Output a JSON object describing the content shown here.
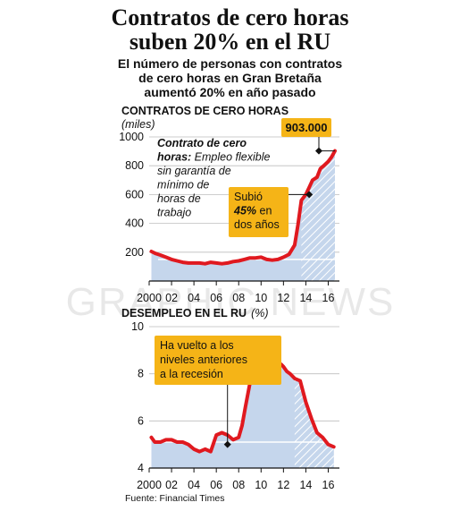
{
  "header": {
    "title_line1": "Contratos de cero horas",
    "title_line2": "suben 20% en el RU",
    "subtitle_line1": "El número de personas con contratos",
    "subtitle_line2": "de cero horas en Gran Bretaña",
    "subtitle_line3": "aumentó 20% en año pasado"
  },
  "colors": {
    "line": "#e0191f",
    "area": "#c5d6ec",
    "callout": "#f5b417",
    "badge": "#f5b417"
  },
  "source": "Fuente: Financial Times",
  "watermark": "GRAPHIC NEWS",
  "chart_data": [
    {
      "type": "area",
      "title": "Contratos de Cero Horas",
      "unit": "(miles)",
      "ylim": [
        0,
        1000
      ],
      "yticks": [
        200,
        400,
        600,
        800,
        1000
      ],
      "ytick_labels": [
        "200",
        "400",
        "600",
        "800",
        "1000"
      ],
      "xlim": [
        2000,
        2017
      ],
      "xticks": [
        2000,
        2002,
        2004,
        2006,
        2008,
        2010,
        2012,
        2014,
        2016
      ],
      "xtick_labels": [
        "2000",
        "02",
        "04",
        "06",
        "08",
        "10",
        "12",
        "14",
        "16"
      ],
      "grid": true,
      "series": [
        {
          "x": [
            2000.2,
            2000.6,
            2001.0,
            2001.5,
            2002.0,
            2002.5,
            2003.0,
            2003.5,
            2004.0,
            2004.5,
            2005.0,
            2005.5,
            2006.0,
            2006.5,
            2007.0,
            2007.5,
            2008.0,
            2008.5,
            2009.0,
            2009.5,
            2010.0,
            2010.5,
            2011.0,
            2011.5,
            2012.0,
            2012.5,
            2013.0,
            2013.3,
            2013.6,
            2014.0,
            2014.3,
            2014.6,
            2015.0,
            2015.3,
            2015.6,
            2016.0,
            2016.3,
            2016.6
          ],
          "values": [
            205,
            190,
            180,
            165,
            150,
            140,
            130,
            125,
            125,
            125,
            120,
            130,
            125,
            120,
            125,
            135,
            140,
            150,
            160,
            160,
            165,
            150,
            145,
            150,
            165,
            185,
            250,
            390,
            560,
            600,
            650,
            700,
            720,
            780,
            800,
            830,
            860,
            903
          ]
        }
      ],
      "callouts": [
        {
          "lines": [
            {
              "parts": [
                {
                  "text": "Contrato de cero",
                  "style": "bold"
                }
              ]
            },
            {
              "parts": [
                {
                  "text": "horas:",
                  "style": "bold"
                },
                {
                  "text": " Empleo flexible",
                  "style": "italic"
                }
              ]
            },
            {
              "parts": [
                {
                  "text": "sin garantía de",
                  "style": "italic"
                }
              ]
            },
            {
              "parts": [
                {
                  "text": "mínimo de",
                  "style": "italic"
                }
              ]
            },
            {
              "parts": [
                {
                  "text": "horas de",
                  "style": "italic"
                }
              ]
            },
            {
              "parts": [
                {
                  "text": "trabajo",
                  "style": "italic"
                }
              ]
            }
          ]
        },
        {
          "lines": [
            {
              "parts": [
                {
                  "text": "Subió",
                  "style": "normal"
                }
              ]
            },
            {
              "parts": [
                {
                  "text": "45%",
                  "style": "bold"
                },
                {
                  "text": " en",
                  "style": "normal"
                }
              ]
            },
            {
              "parts": [
                {
                  "text": "dos años",
                  "style": "normal"
                }
              ]
            }
          ],
          "pointer_x": 2014.3,
          "pointer_y": 600
        }
      ],
      "highlight_value": "903.000",
      "highlight_x": 2016.6,
      "highlight_y": 903
    },
    {
      "type": "area",
      "title": "Desempleo en el RU",
      "unit": "(%)",
      "ylim": [
        4,
        10
      ],
      "yticks": [
        4,
        6,
        8,
        10
      ],
      "ytick_labels": [
        "4",
        "6",
        "8",
        "10"
      ],
      "xlim": [
        2000,
        2017
      ],
      "xticks": [
        2000,
        2002,
        2004,
        2006,
        2008,
        2010,
        2012,
        2014,
        2016
      ],
      "xtick_labels": [
        "2000",
        "02",
        "04",
        "06",
        "08",
        "10",
        "12",
        "14",
        "16"
      ],
      "grid": true,
      "series": [
        {
          "x": [
            2000.2,
            2000.5,
            2001.0,
            2001.5,
            2002.0,
            2002.5,
            2003.0,
            2003.5,
            2004.0,
            2004.5,
            2005.0,
            2005.5,
            2006.0,
            2006.5,
            2007.0,
            2007.5,
            2008.0,
            2008.3,
            2008.6,
            2009.0,
            2009.3,
            2009.6,
            2010.0,
            2010.5,
            2011.0,
            2011.5,
            2011.8,
            2012.0,
            2012.3,
            2012.6,
            2013.0,
            2013.5,
            2014.0,
            2014.5,
            2015.0,
            2015.5,
            2016.0,
            2016.5
          ],
          "values": [
            5.3,
            5.1,
            5.1,
            5.2,
            5.2,
            5.1,
            5.1,
            5.0,
            4.8,
            4.7,
            4.8,
            4.7,
            5.4,
            5.5,
            5.4,
            5.2,
            5.3,
            5.8,
            6.6,
            7.6,
            7.9,
            7.8,
            7.9,
            7.8,
            7.9,
            8.2,
            8.4,
            8.3,
            8.1,
            8.0,
            7.8,
            7.7,
            6.8,
            6.1,
            5.5,
            5.3,
            5.0,
            4.9
          ]
        }
      ],
      "callouts": [
        {
          "lines": [
            {
              "parts": [
                {
                  "text": "Ha vuelto a los",
                  "style": "normal"
                }
              ]
            },
            {
              "parts": [
                {
                  "text": "niveles anteriores",
                  "style": "normal"
                }
              ]
            },
            {
              "parts": [
                {
                  "text": "a la recesión",
                  "style": "normal"
                }
              ]
            }
          ],
          "pointer_x": 2007.0,
          "pointer_y": 5.0
        }
      ]
    }
  ]
}
